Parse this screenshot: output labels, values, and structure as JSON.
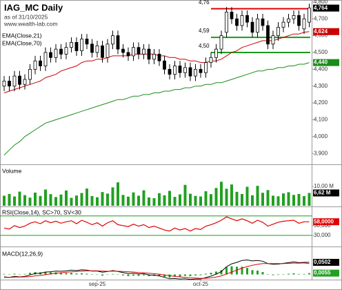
{
  "chart_data": [
    {
      "type": "candlestick",
      "title": "IAG_MC Daily",
      "subtitle": "as of 31/10/2025",
      "source": "www.wealth-lab.com",
      "categories": [
        null,
        null,
        null,
        null,
        null,
        null,
        null,
        null,
        null,
        null,
        null,
        null,
        null,
        null,
        null,
        null,
        null,
        null,
        "sep-25",
        null,
        null,
        null,
        null,
        null,
        null,
        null,
        null,
        null,
        null,
        null,
        null,
        null,
        null,
        null,
        null,
        null,
        null,
        null,
        "oct-25",
        null,
        null,
        null,
        null,
        null,
        null,
        null,
        null,
        null,
        null,
        null,
        null,
        null,
        null,
        null,
        null,
        null,
        null,
        null,
        null,
        null
      ],
      "open": [
        4.3,
        4.33,
        4.3,
        4.36,
        4.31,
        4.34,
        4.4,
        4.45,
        4.42,
        4.5,
        4.47,
        4.52,
        4.49,
        4.53,
        4.56,
        4.51,
        4.58,
        4.55,
        4.5,
        4.54,
        4.47,
        4.55,
        4.6,
        4.52,
        4.5,
        4.48,
        4.53,
        4.49,
        4.52,
        4.46,
        4.49,
        4.45,
        4.4,
        4.37,
        4.42,
        4.38,
        4.41,
        4.36,
        4.4,
        4.38,
        4.44,
        4.47,
        4.52,
        4.62,
        4.74,
        4.7,
        4.66,
        4.72,
        4.68,
        4.62,
        4.7,
        4.66,
        4.55,
        4.6,
        4.65,
        4.68,
        4.7,
        4.72,
        4.64,
        4.68
      ],
      "high": [
        4.36,
        4.36,
        4.39,
        4.39,
        4.37,
        4.43,
        4.48,
        4.48,
        4.53,
        4.53,
        4.55,
        4.55,
        4.56,
        4.59,
        4.59,
        4.61,
        4.61,
        4.58,
        4.57,
        4.57,
        4.58,
        4.63,
        4.63,
        4.55,
        4.53,
        4.56,
        4.56,
        4.55,
        4.55,
        4.52,
        4.52,
        4.48,
        4.43,
        4.45,
        4.45,
        4.44,
        4.44,
        4.43,
        4.43,
        4.47,
        4.5,
        4.55,
        4.63,
        4.77,
        4.77,
        4.73,
        4.75,
        4.75,
        4.71,
        4.73,
        4.73,
        4.69,
        4.63,
        4.68,
        4.71,
        4.73,
        4.75,
        4.75,
        4.73,
        4.79
      ],
      "low": [
        4.27,
        4.27,
        4.27,
        4.28,
        4.28,
        4.31,
        4.37,
        4.39,
        4.39,
        4.44,
        4.44,
        4.46,
        4.46,
        4.5,
        4.48,
        4.48,
        4.52,
        4.47,
        4.47,
        4.44,
        4.44,
        4.52,
        4.49,
        4.47,
        4.45,
        4.45,
        4.46,
        4.46,
        4.43,
        4.43,
        4.42,
        4.37,
        4.34,
        4.34,
        4.35,
        4.35,
        4.33,
        4.33,
        4.35,
        4.35,
        4.41,
        4.44,
        4.49,
        4.59,
        4.67,
        4.63,
        4.63,
        4.65,
        4.59,
        4.59,
        4.63,
        4.52,
        4.52,
        4.57,
        4.62,
        4.65,
        4.67,
        4.63,
        4.61,
        4.65
      ],
      "close": [
        4.33,
        4.3,
        4.36,
        4.31,
        4.34,
        4.4,
        4.45,
        4.42,
        4.5,
        4.47,
        4.52,
        4.49,
        4.53,
        4.56,
        4.51,
        4.58,
        4.55,
        4.5,
        4.54,
        4.47,
        4.55,
        4.6,
        4.52,
        4.5,
        4.48,
        4.53,
        4.49,
        4.52,
        4.46,
        4.49,
        4.45,
        4.4,
        4.37,
        4.42,
        4.38,
        4.41,
        4.36,
        4.4,
        4.38,
        4.44,
        4.47,
        4.52,
        4.6,
        4.74,
        4.7,
        4.66,
        4.72,
        4.68,
        4.62,
        4.7,
        4.66,
        4.55,
        4.6,
        4.65,
        4.68,
        4.7,
        4.72,
        4.66,
        4.7,
        4.764
      ],
      "close_label": "4,764",
      "ylim": [
        3.839,
        4.812
      ],
      "yticks": [
        {
          "value": 4.8,
          "label": "4,800"
        },
        {
          "value": 4.7,
          "label": "4,700"
        },
        {
          "value": 4.6,
          "label": "4,600"
        },
        {
          "value": 4.5,
          "label": "4,500"
        },
        {
          "value": 4.4,
          "label": "4,400"
        },
        {
          "value": 4.3,
          "label": "4,300"
        },
        {
          "value": 4.2,
          "label": "4,200"
        },
        {
          "value": 4.1,
          "label": "4,100"
        },
        {
          "value": 4.0,
          "label": "4,000"
        },
        {
          "value": 3.9,
          "label": "3,900"
        }
      ],
      "series": [
        {
          "name": "EMA(Close,21)",
          "color": "#cc0000",
          "last_label": "4,624",
          "values": [
            4.26,
            4.27,
            4.28,
            4.29,
            4.3,
            4.31,
            4.32,
            4.33,
            4.35,
            4.36,
            4.37,
            4.39,
            4.4,
            4.41,
            4.42,
            4.44,
            4.45,
            4.45,
            4.46,
            4.46,
            4.47,
            4.48,
            4.48,
            4.48,
            4.48,
            4.49,
            4.49,
            4.49,
            4.49,
            4.49,
            4.48,
            4.48,
            4.47,
            4.47,
            4.46,
            4.46,
            4.45,
            4.45,
            4.44,
            4.44,
            4.45,
            4.45,
            4.46,
            4.48,
            4.5,
            4.51,
            4.53,
            4.54,
            4.55,
            4.56,
            4.57,
            4.57,
            4.57,
            4.58,
            4.59,
            4.6,
            4.61,
            4.61,
            4.62,
            4.624
          ]
        },
        {
          "name": "EMA(Close,70)",
          "color": "#1a8c1a",
          "last_label": "4,440",
          "values": [
            3.89,
            3.92,
            3.95,
            3.97,
            4.0,
            4.02,
            4.04,
            4.06,
            4.08,
            4.09,
            4.1,
            4.11,
            4.12,
            4.13,
            4.14,
            4.15,
            4.16,
            4.17,
            4.18,
            4.19,
            4.2,
            4.21,
            4.22,
            4.22,
            4.23,
            4.24,
            4.24,
            4.25,
            4.25,
            4.26,
            4.26,
            4.27,
            4.27,
            4.28,
            4.28,
            4.29,
            4.29,
            4.3,
            4.3,
            4.31,
            4.31,
            4.32,
            4.32,
            4.33,
            4.34,
            4.35,
            4.36,
            4.37,
            4.38,
            4.39,
            4.39,
            4.4,
            4.4,
            4.41,
            4.41,
            4.42,
            4.42,
            4.43,
            4.43,
            4.44
          ]
        }
      ],
      "levels": [
        {
          "value": 4.76,
          "label": "4,76",
          "color": "#e00000"
        },
        {
          "value": 4.59,
          "label": "4,59",
          "color": "#1a9a1a"
        },
        {
          "value": 4.5,
          "label": "4,50",
          "color": "#1a9a1a"
        }
      ]
    },
    {
      "type": "bar",
      "title": "Volume",
      "color": "#22a022",
      "values": [
        5.2,
        6.1,
        4.8,
        7.3,
        5.5,
        4.2,
        6.8,
        5.1,
        8.4,
        6.0,
        4.5,
        5.8,
        7.9,
        4.1,
        5.3,
        6.6,
        8.9,
        5.0,
        4.4,
        7.1,
        6.3,
        9.5,
        12.1,
        5.6,
        4.7,
        6.9,
        5.2,
        8.0,
        4.3,
        3.9,
        6.5,
        5.4,
        7.7,
        4.6,
        5.9,
        10.8,
        6.2,
        5.1,
        4.8,
        7.5,
        6.0,
        9.2,
        12.4,
        8.8,
        11.0,
        7.2,
        6.1,
        9.8,
        5.4,
        10.3,
        6.7,
        8.1,
        5.2,
        4.9,
        6.4,
        7.0,
        5.6,
        6.1,
        5.0,
        6.62
      ],
      "last_label": "6,62 M",
      "ylim": [
        0,
        20.7
      ],
      "yticks": [
        {
          "value": 10,
          "label": "10,00 M"
        }
      ]
    },
    {
      "type": "line",
      "title": "RSI(Close,14), SC>70, SV<30",
      "color": "#e00000",
      "level_color": "#1a9a1a",
      "values": [
        45,
        43,
        50,
        46,
        49,
        55,
        58,
        54,
        60,
        56,
        59,
        55,
        58,
        60,
        54,
        61,
        57,
        52,
        56,
        49,
        56,
        60,
        52,
        50,
        48,
        53,
        49,
        52,
        46,
        49,
        45,
        41,
        39,
        45,
        41,
        44,
        39,
        44,
        42,
        49,
        52,
        56,
        61,
        68,
        64,
        60,
        64,
        60,
        55,
        61,
        57,
        49,
        53,
        57,
        59,
        60,
        61,
        55,
        58,
        58
      ],
      "last_label": "58,0000",
      "levels": [
        70,
        30
      ],
      "ylim": [
        10,
        88
      ],
      "yticks": [
        {
          "value": 50,
          "label": "50,000"
        },
        {
          "value": 30,
          "label": "30,000"
        }
      ]
    },
    {
      "type": "macd",
      "title": "MACD(12,26,9)",
      "ylim": [
        -0.0215,
        0.113
      ],
      "series": [
        {
          "color": "#000000",
          "last_label": "0,0502",
          "values": [
            -0.01,
            -0.012,
            -0.008,
            -0.01,
            -0.008,
            -0.002,
            0.004,
            0.005,
            0.01,
            0.011,
            0.014,
            0.013,
            0.015,
            0.018,
            0.016,
            0.019,
            0.018,
            0.014,
            0.014,
            0.009,
            0.012,
            0.016,
            0.012,
            0.008,
            0.004,
            0.005,
            0.002,
            0.003,
            -0.002,
            -0.003,
            -0.006,
            -0.012,
            -0.018,
            -0.017,
            -0.019,
            -0.018,
            -0.021,
            -0.019,
            -0.019,
            -0.013,
            -0.007,
            0.001,
            0.012,
            0.032,
            0.044,
            0.05,
            0.058,
            0.06,
            0.056,
            0.058,
            0.055,
            0.045,
            0.042,
            0.043,
            0.046,
            0.049,
            0.052,
            0.049,
            0.05,
            0.0502
          ]
        },
        {
          "color": "#e00000",
          "values": [
            -0.012,
            -0.012,
            -0.011,
            -0.011,
            -0.01,
            -0.009,
            -0.006,
            -0.004,
            -0.001,
            0.002,
            0.005,
            0.007,
            0.009,
            0.011,
            0.012,
            0.014,
            0.015,
            0.015,
            0.015,
            0.014,
            0.013,
            0.014,
            0.013,
            0.012,
            0.011,
            0.01,
            0.008,
            0.007,
            0.005,
            0.003,
            0.001,
            -0.002,
            -0.005,
            -0.008,
            -0.01,
            -0.012,
            -0.014,
            -0.015,
            -0.016,
            -0.016,
            -0.014,
            -0.011,
            -0.006,
            0.002,
            0.01,
            0.018,
            0.026,
            0.033,
            0.038,
            0.042,
            0.045,
            0.045,
            0.045,
            0.045,
            0.045,
            0.046,
            0.047,
            0.047,
            0.048,
            0.0447
          ]
        }
      ],
      "histogram": {
        "color": "#22a022",
        "last_label": "0,0055",
        "values": [
          0.002,
          0.0,
          0.003,
          0.001,
          0.002,
          0.007,
          0.01,
          0.009,
          0.011,
          0.009,
          0.009,
          0.006,
          0.006,
          0.007,
          0.004,
          0.005,
          0.003,
          -0.001,
          -0.001,
          -0.005,
          -0.001,
          0.002,
          -0.001,
          -0.004,
          -0.007,
          -0.005,
          -0.006,
          -0.004,
          -0.007,
          -0.006,
          -0.007,
          -0.01,
          -0.013,
          -0.009,
          -0.009,
          -0.006,
          -0.007,
          -0.004,
          -0.003,
          0.003,
          0.007,
          0.012,
          0.018,
          0.03,
          0.034,
          0.032,
          0.032,
          0.027,
          0.018,
          0.016,
          0.01,
          0.0,
          -0.003,
          -0.002,
          0.001,
          0.003,
          0.005,
          0.002,
          0.002,
          0.0055
        ]
      }
    }
  ]
}
